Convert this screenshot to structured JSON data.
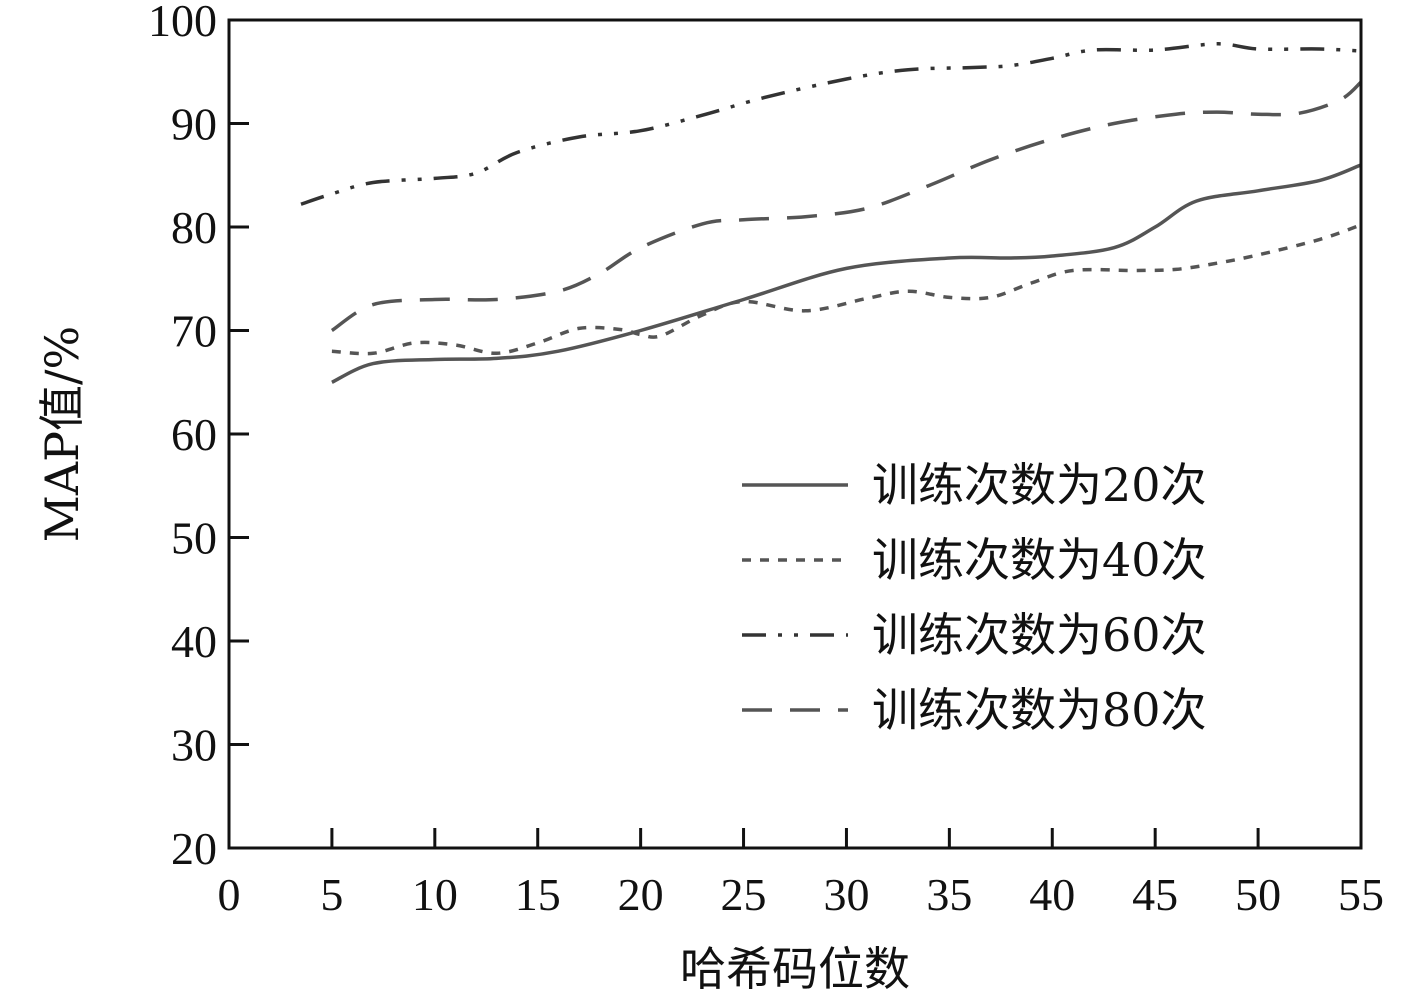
{
  "chart_data": {
    "type": "line",
    "title": "",
    "xlabel": "哈希码位数",
    "ylabel": "MAP值/%",
    "xlim": [
      0,
      55
    ],
    "ylim": [
      20,
      100
    ],
    "xticks": [
      0,
      5,
      10,
      15,
      20,
      25,
      30,
      35,
      40,
      45,
      50,
      55
    ],
    "yticks": [
      20,
      30,
      40,
      50,
      60,
      70,
      80,
      90,
      100
    ],
    "grid": false,
    "legend_position": "lower-right",
    "series": [
      {
        "name": "训练次数为20次",
        "style": "solid",
        "color": "#555555",
        "x": [
          5,
          7,
          10,
          13,
          16,
          20,
          25,
          30,
          35,
          38,
          40,
          43,
          45,
          47,
          50,
          53,
          55
        ],
        "y": [
          65,
          66.8,
          67.2,
          67.3,
          68,
          70,
          73,
          76,
          77,
          77,
          77.2,
          78,
          80,
          82.5,
          83.5,
          84.5,
          86
        ]
      },
      {
        "name": "训练次数为40次",
        "style": "dotted",
        "color": "#555555",
        "x": [
          5,
          7,
          9,
          11,
          13,
          15,
          17,
          19,
          20,
          21,
          23,
          25,
          28,
          31,
          33,
          35,
          37,
          39,
          41,
          44,
          46,
          48,
          50,
          53,
          55
        ],
        "y": [
          68,
          67.8,
          68.8,
          68.6,
          67.8,
          68.8,
          70.2,
          70.1,
          69.6,
          69.5,
          71.5,
          72.8,
          71.9,
          73.1,
          73.8,
          73.2,
          73.2,
          74.6,
          75.8,
          75.8,
          75.9,
          76.5,
          77.3,
          78.8,
          80.2
        ]
      },
      {
        "name": "训练次数为60次",
        "style": "dash-dot-dot",
        "color": "#333333",
        "x": [
          3.5,
          5,
          7,
          10,
          12,
          14,
          17,
          20,
          23,
          26,
          30,
          33,
          36,
          38,
          40,
          42,
          45,
          48,
          50,
          53,
          55
        ],
        "y": [
          82.2,
          83.2,
          84.3,
          84.7,
          85.2,
          87.2,
          88.7,
          89.3,
          90.8,
          92.5,
          94.3,
          95.2,
          95.4,
          95.6,
          96.3,
          97.1,
          97.1,
          97.7,
          97.2,
          97.2,
          97
        ]
      },
      {
        "name": "训练次数为80次",
        "style": "dashed",
        "color": "#555555",
        "x": [
          5,
          7,
          10,
          13,
          16,
          18,
          20,
          23,
          25,
          28,
          31,
          34,
          37,
          40,
          43,
          46,
          48,
          50,
          52,
          54,
          55
        ],
        "y": [
          70,
          72.5,
          73,
          73,
          73.8,
          75.5,
          78,
          80.3,
          80.7,
          81,
          81.8,
          84,
          86.5,
          88.5,
          90,
          90.9,
          91.1,
          90.9,
          91,
          92.3,
          94
        ]
      }
    ]
  }
}
